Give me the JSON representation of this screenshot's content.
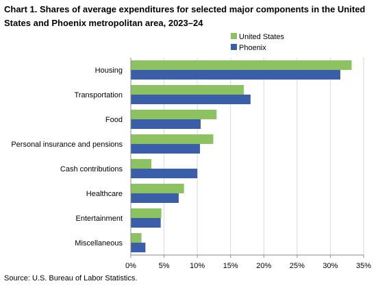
{
  "chart_data": {
    "type": "bar",
    "orientation": "horizontal",
    "title": "Chart 1. Shares of average expenditures for selected major components in the United States and Phoenix metropolitan area, 2023–24",
    "categories": [
      "Housing",
      "Transportation",
      "Food",
      "Personal insurance and pensions",
      "Cash contributions",
      "Healthcare",
      "Entertainment",
      "Miscellaneous"
    ],
    "series": [
      {
        "name": "United States",
        "color": "#8dc263",
        "values": [
          33.2,
          17.0,
          12.9,
          12.4,
          3.1,
          8.0,
          4.6,
          1.6
        ]
      },
      {
        "name": "Phoenix",
        "color": "#3a5ea8",
        "values": [
          31.5,
          18.0,
          10.5,
          10.4,
          10.0,
          7.2,
          4.5,
          2.2
        ]
      }
    ],
    "xlim": [
      0,
      35
    ],
    "xticks": [
      "0%",
      "5%",
      "10%",
      "15%",
      "20%",
      "25%",
      "30%",
      "35%"
    ],
    "xlabel": "",
    "ylabel": "",
    "legend_position": "top-right",
    "grid": "vertical"
  },
  "source": "Source: U.S. Bureau of Labor Statistics."
}
